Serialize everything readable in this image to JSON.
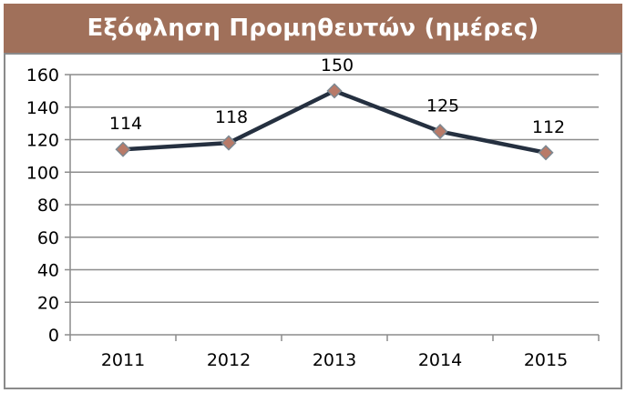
{
  "chart_data": {
    "type": "line",
    "title": "Εξόφληση Προμηθευτών (ημέρες)",
    "categories": [
      "2011",
      "2012",
      "2013",
      "2014",
      "2015"
    ],
    "series": [
      {
        "values": [
          114,
          118,
          150,
          125,
          112
        ]
      }
    ],
    "data_labels": [
      "114",
      "118",
      "150",
      "125",
      "112"
    ],
    "y_ticks": [
      "0",
      "20",
      "40",
      "60",
      "80",
      "100",
      "120",
      "140",
      "160"
    ],
    "ylim": [
      0,
      160
    ],
    "grid": true,
    "legend": "none",
    "colors": {
      "title_background": "#a0705a",
      "line": "#253040",
      "marker_fill": "#b87a68",
      "marker_stroke": "#7d8891",
      "grid": "#8c8c8c"
    }
  }
}
